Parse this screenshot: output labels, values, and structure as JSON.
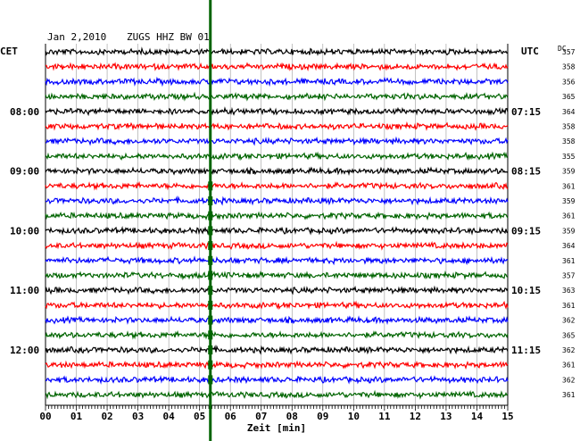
{
  "header": {
    "date": "Jan 2,2010",
    "station": "ZUGS HHZ BW 01",
    "left_tz": "CET",
    "right_tz": "UTC",
    "dc_label": "DC"
  },
  "colors": {
    "trace_cycle": [
      "#000000",
      "#ff0000",
      "#0000ff",
      "#006400"
    ],
    "event_marker": "#006400",
    "grid": "#999999",
    "axis": "#000000"
  },
  "chart_data": {
    "type": "line",
    "subtype": "seismogram helicorder",
    "xlabel": "Zeit [min]",
    "x_ticks": [
      "00",
      "01",
      "02",
      "03",
      "04",
      "05",
      "06",
      "07",
      "08",
      "09",
      "10",
      "11",
      "12",
      "13",
      "14",
      "15"
    ],
    "xlim": [
      0,
      15
    ],
    "rows": 24,
    "minutes_per_row": 15,
    "left_time_labels": [
      {
        "row": 4,
        "label": "08:00"
      },
      {
        "row": 8,
        "label": "09:00"
      },
      {
        "row": 12,
        "label": "10:00"
      },
      {
        "row": 16,
        "label": "11:00"
      },
      {
        "row": 20,
        "label": "12:00"
      }
    ],
    "right_time_labels": [
      {
        "row": 4,
        "label": "07:15"
      },
      {
        "row": 8,
        "label": "08:15"
      },
      {
        "row": 12,
        "label": "09:15"
      },
      {
        "row": 16,
        "label": "10:15"
      },
      {
        "row": 20,
        "label": "11:15"
      }
    ],
    "dc_values": [
      "357",
      "358",
      "356",
      "365",
      "364",
      "358",
      "358",
      "355",
      "359",
      "361",
      "359",
      "361",
      "359",
      "364",
      "361",
      "357",
      "363",
      "361",
      "362",
      "365",
      "362",
      "361",
      "362",
      "361"
    ],
    "event_minute": 5.35,
    "event_rows": [
      9,
      10,
      11,
      12,
      13,
      14,
      15,
      16,
      17,
      18,
      19,
      20,
      21,
      22
    ],
    "grid": true
  }
}
